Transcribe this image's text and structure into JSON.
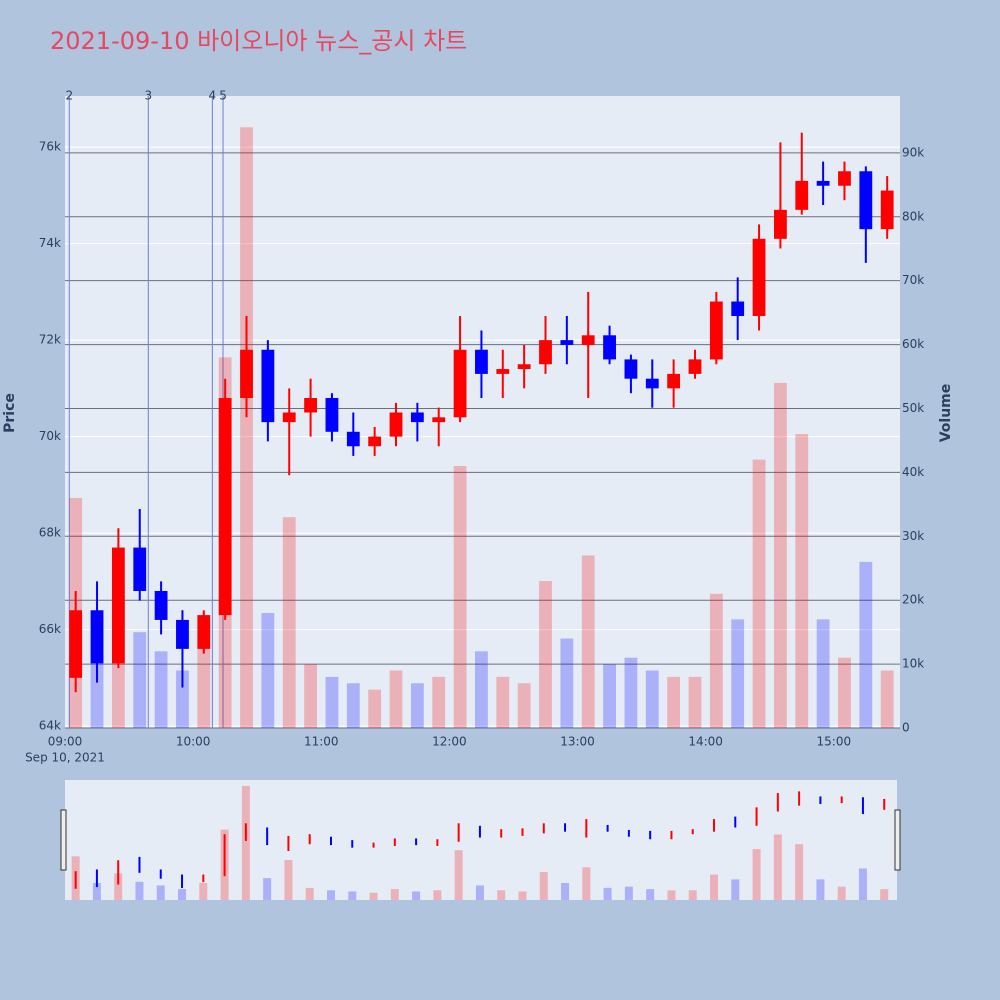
{
  "chart_data": {
    "type": "candlestick",
    "title": "2021-09-10 바이오니아 뉴스_공시 차트",
    "y_label": "Price",
    "y2_label": "Volume",
    "x_date_label": "Sep 10, 2021",
    "up_color": "#ff0000",
    "down_color": "#0000ff",
    "x": [
      "09:00",
      "09:10",
      "09:20",
      "09:30",
      "09:40",
      "09:50",
      "10:00",
      "10:10",
      "10:20",
      "10:30",
      "10:40",
      "10:50",
      "11:00",
      "11:10",
      "11:20",
      "11:30",
      "11:40",
      "11:50",
      "12:00",
      "12:10",
      "12:20",
      "12:30",
      "12:40",
      "12:50",
      "13:00",
      "13:10",
      "13:20",
      "13:30",
      "13:40",
      "13:50",
      "14:00",
      "14:10",
      "14:20",
      "14:30",
      "14:40",
      "14:50",
      "15:00",
      "15:10",
      "15:20"
    ],
    "open": [
      65000,
      66400,
      65300,
      67700,
      66800,
      66200,
      65600,
      66300,
      70800,
      71800,
      70300,
      70500,
      70800,
      70100,
      69800,
      70000,
      70500,
      70300,
      70400,
      71800,
      71300,
      71400,
      71500,
      72000,
      71900,
      72100,
      71600,
      71200,
      71000,
      71300,
      71600,
      72800,
      72500,
      74100,
      74700,
      75300,
      75200,
      75500,
      74300
    ],
    "high": [
      66800,
      67000,
      68100,
      68500,
      67000,
      66400,
      66400,
      71200,
      72500,
      72000,
      71000,
      71200,
      70900,
      70500,
      70200,
      70700,
      70700,
      70600,
      72500,
      72200,
      71800,
      71900,
      72500,
      72500,
      73000,
      72300,
      71700,
      71600,
      71600,
      71800,
      73000,
      73300,
      74400,
      76100,
      76300,
      75700,
      75700,
      75600,
      75400
    ],
    "low": [
      64700,
      64900,
      65200,
      66600,
      65900,
      64800,
      65500,
      66200,
      70400,
      69900,
      69200,
      70000,
      69900,
      69600,
      69600,
      69800,
      69900,
      69800,
      70300,
      70800,
      70800,
      71000,
      71300,
      71500,
      70800,
      71500,
      70900,
      70600,
      70600,
      71200,
      71500,
      72000,
      72200,
      73900,
      74600,
      74800,
      74900,
      73600,
      74100
    ],
    "close": [
      66400,
      65300,
      67700,
      66800,
      66200,
      65600,
      66300,
      70800,
      71800,
      70300,
      70500,
      70800,
      70100,
      69800,
      70000,
      70500,
      70300,
      70400,
      71800,
      71300,
      71400,
      71500,
      72000,
      71900,
      72100,
      71600,
      71200,
      71000,
      71300,
      71600,
      72800,
      72500,
      74100,
      74700,
      75300,
      75200,
      75500,
      74300,
      75100
    ],
    "volume": [
      36000,
      14000,
      22000,
      15000,
      12000,
      9000,
      14000,
      58000,
      94000,
      18000,
      33000,
      10000,
      8000,
      7000,
      6000,
      9000,
      7000,
      8000,
      41000,
      12000,
      8000,
      7000,
      23000,
      14000,
      27000,
      10000,
      11000,
      9000,
      8000,
      8000,
      21000,
      17000,
      42000,
      54000,
      46000,
      17000,
      11000,
      26000,
      9000
    ],
    "xlim": [
      "09:00",
      "15:31"
    ],
    "xticks": [
      "09:00",
      "10:00",
      "11:00",
      "12:00",
      "13:00",
      "14:00",
      "15:00"
    ],
    "ylim": [
      63960,
      77060
    ],
    "yticks": [
      {
        "value": 64000,
        "label": "64k"
      },
      {
        "value": 66000,
        "label": "66k"
      },
      {
        "value": 68000,
        "label": "68k"
      },
      {
        "value": 70000,
        "label": "70k"
      },
      {
        "value": 72000,
        "label": "72k"
      },
      {
        "value": 74000,
        "label": "74k"
      },
      {
        "value": 76000,
        "label": "76k"
      }
    ],
    "y2lim": [
      0,
      98900
    ],
    "y2ticks": [
      0,
      {
        "value": 10000,
        "label": "10k"
      },
      {
        "value": 20000,
        "label": "20k"
      },
      {
        "value": 30000,
        "label": "30k"
      },
      {
        "value": 40000,
        "label": "40k"
      },
      {
        "value": 50000,
        "label": "50k"
      },
      {
        "value": 60000,
        "label": "60k"
      },
      {
        "value": 70000,
        "label": "70k"
      },
      {
        "value": 80000,
        "label": "80k"
      },
      {
        "value": 90000,
        "label": "90k"
      }
    ],
    "annotations": [
      {
        "x": "09:02",
        "label": "2"
      },
      {
        "x": "09:39",
        "label": "3"
      },
      {
        "x": "10:09",
        "label": "4"
      },
      {
        "x": "10:14",
        "label": "5"
      }
    ]
  }
}
